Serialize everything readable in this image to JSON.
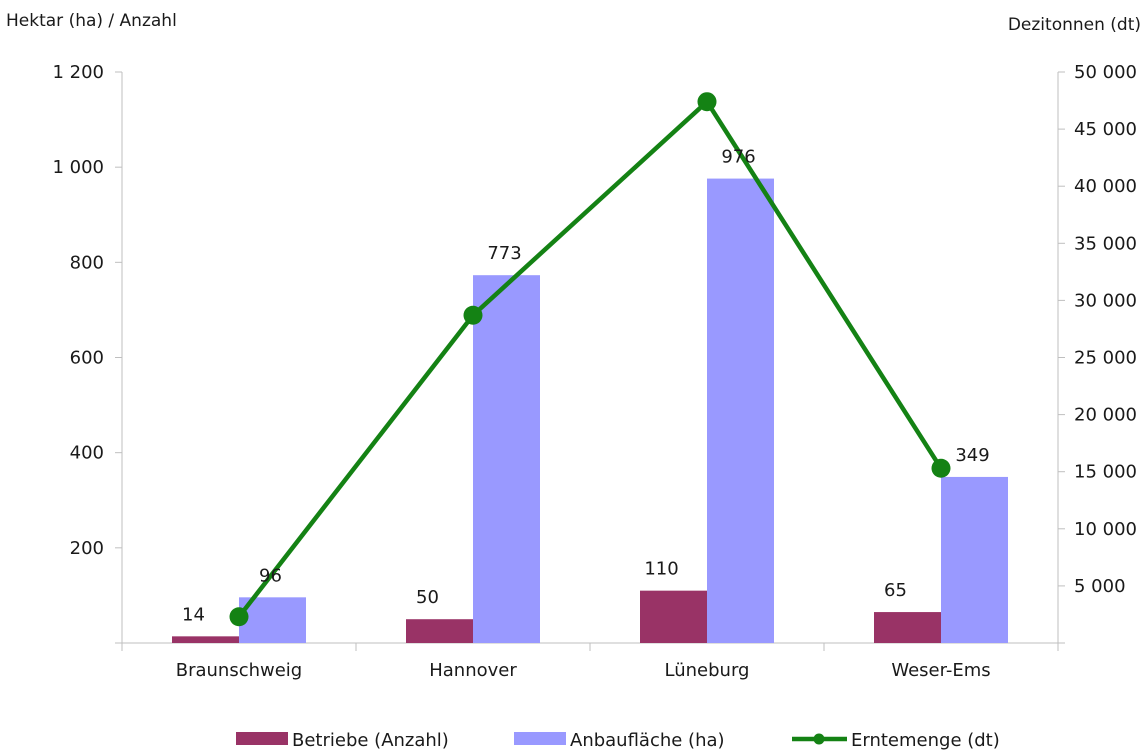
{
  "chart_data": {
    "type": "bar",
    "categories": [
      "Braunschweig",
      "Hannover",
      "Lüneburg",
      "Weser-Ems"
    ],
    "series": [
      {
        "name": "Betriebe (Anzahl)",
        "kind": "bar",
        "axis": "left",
        "color": "#993366",
        "values": [
          14,
          50,
          110,
          65
        ]
      },
      {
        "name": "Anbaufläche (ha)",
        "kind": "bar",
        "axis": "left",
        "color": "#9999ff",
        "values": [
          96,
          773,
          976,
          349
        ]
      },
      {
        "name": "Erntemenge (dt)",
        "kind": "line",
        "axis": "right",
        "color": "#148214",
        "values": [
          2300,
          28700,
          47400,
          15300
        ]
      }
    ],
    "ylabel_left": "Hektar (ha) / Anzahl",
    "ylabel_right": "Dezitonnen (dt)",
    "ylim_left": [
      0,
      1200
    ],
    "yticks_left": [
      200,
      400,
      600,
      800,
      1000,
      1200
    ],
    "ytick_labels_left": [
      "200",
      "400",
      "600",
      "800",
      "1 000",
      "1 200"
    ],
    "ylim_right": [
      0,
      50000
    ],
    "yticks_right": [
      5000,
      10000,
      15000,
      20000,
      25000,
      30000,
      35000,
      40000,
      45000,
      50000
    ],
    "ytick_labels_right": [
      "5 000",
      "10 000",
      "15 000",
      "20 000",
      "25 000",
      "30 000",
      "35 000",
      "40 000",
      "45 000",
      "50 000"
    ],
    "legend_placement": "bottom",
    "grid": false
  }
}
